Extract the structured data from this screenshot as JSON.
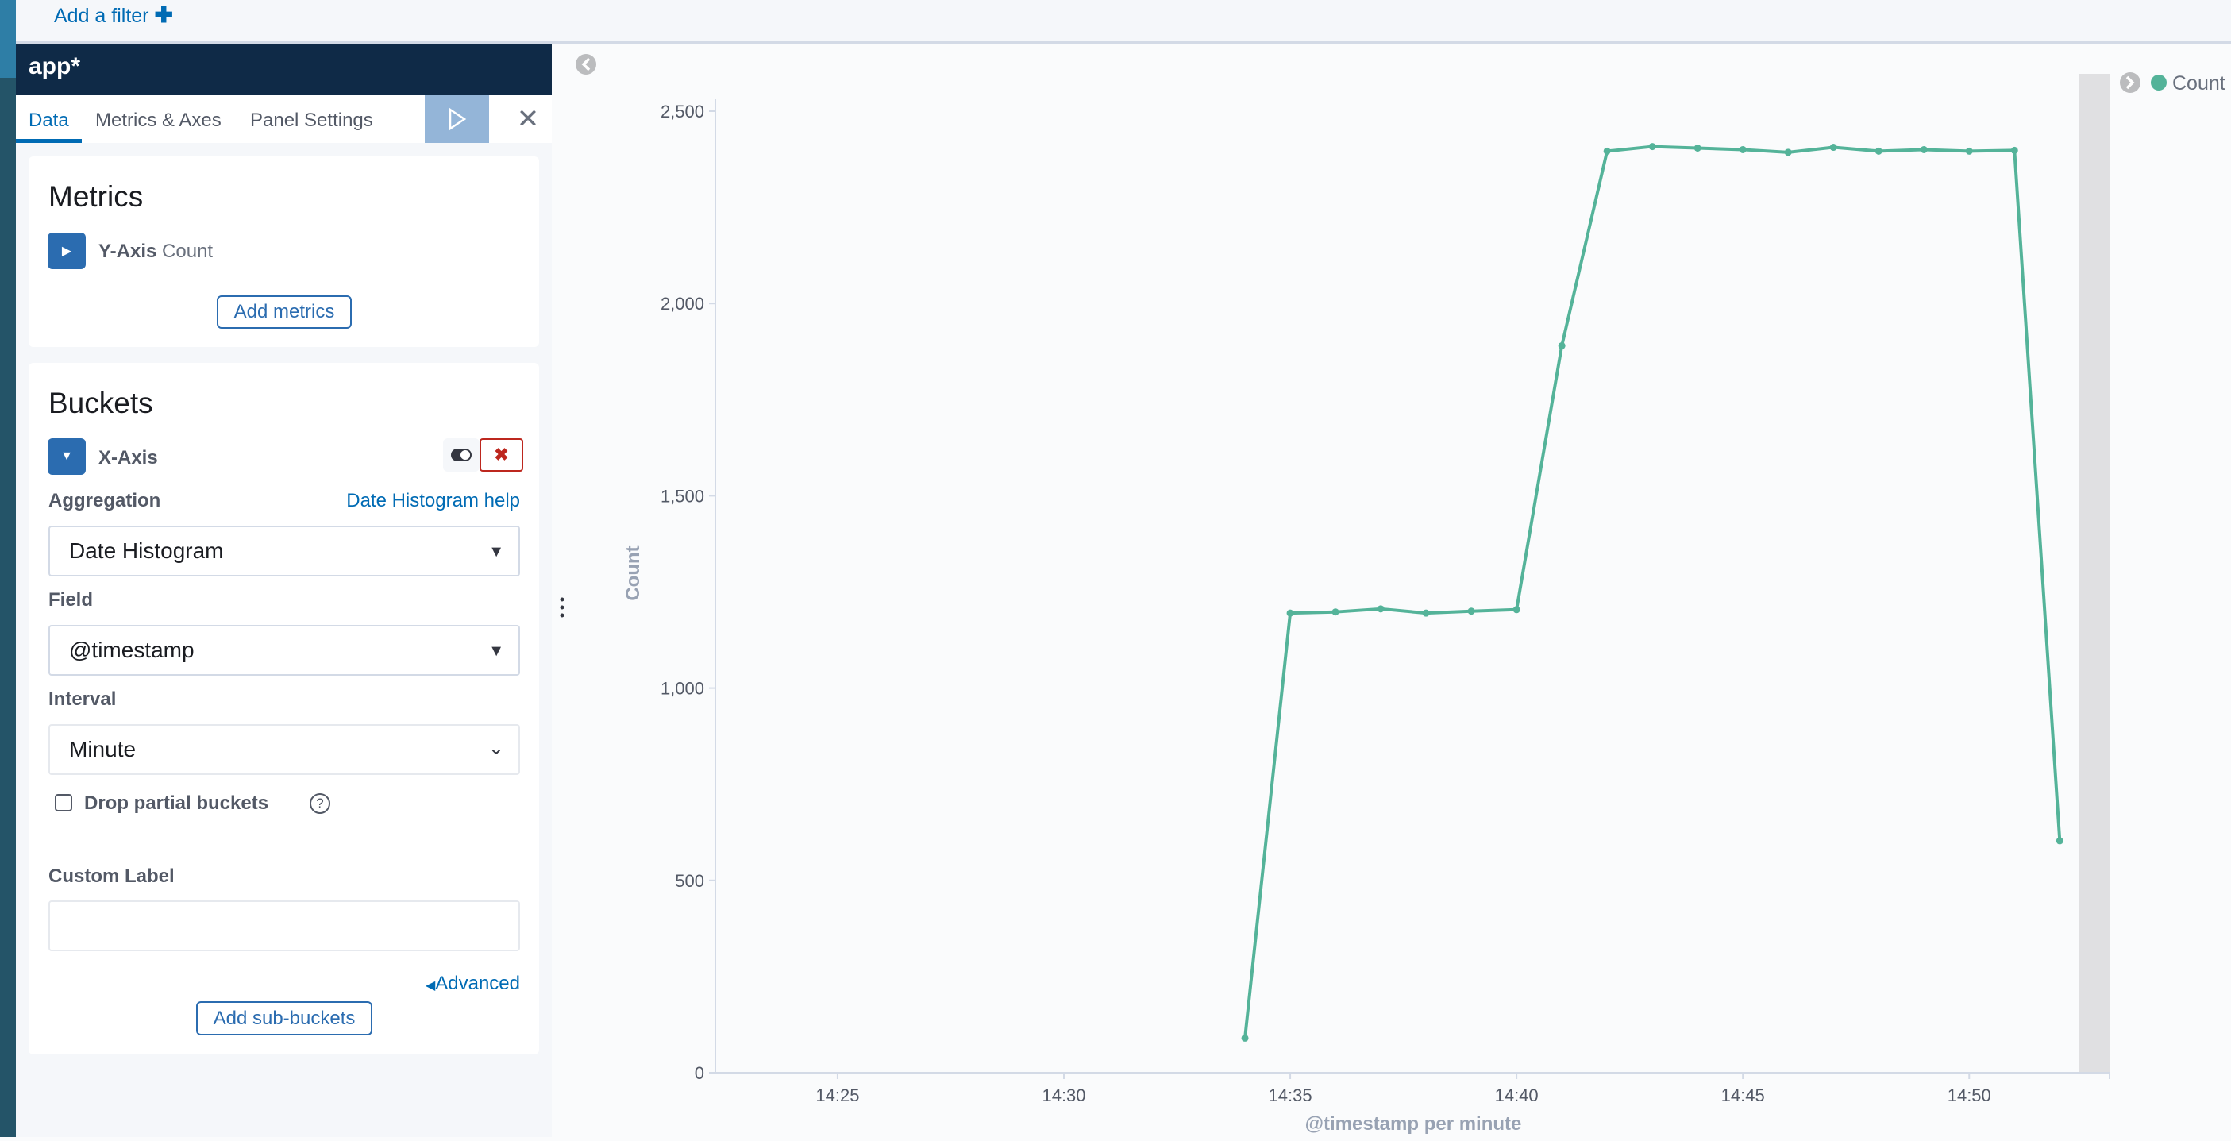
{
  "filter_bar": {
    "add_filter_label": "Add a filter",
    "add_icon": "plus-icon"
  },
  "editor": {
    "index_pattern": "app*",
    "tabs": [
      {
        "label": "Data",
        "active": true
      },
      {
        "label": "Metrics & Axes"
      },
      {
        "label": "Panel Settings"
      }
    ],
    "apply_icon": "play-icon",
    "close_icon": "close-icon",
    "metrics": {
      "title": "Metrics",
      "item_axis": "Y-Axis",
      "item_agg": "Count",
      "add_label": "Add metrics"
    },
    "buckets": {
      "title": "Buckets",
      "item_axis": "X-Axis",
      "aggregation_label": "Aggregation",
      "help_link": "Date Histogram help",
      "aggregation_value": "Date Histogram",
      "field_label": "Field",
      "field_value": "@timestamp",
      "interval_label": "Interval",
      "interval_value": "Minute",
      "drop_partial_label": "Drop partial buckets",
      "drop_partial_checked": false,
      "custom_label_label": "Custom Label",
      "custom_label_value": "",
      "advanced_label": "Advanced",
      "add_sub_label": "Add sub-buckets"
    },
    "colors": {
      "accent": "#006bb4",
      "header": "#0f2a47",
      "delete": "#bd271e"
    }
  },
  "chart_data": {
    "type": "line",
    "xlabel": "@timestamp per minute",
    "ylabel": "Count",
    "x_ticks": [
      "14:25",
      "14:30",
      "14:35",
      "14:40",
      "14:45",
      "14:50"
    ],
    "y_ticks": [
      "0",
      "500",
      "1,000",
      "1,500",
      "2,000",
      "2,500"
    ],
    "xlim": [
      "14:22:18",
      "14:53:06"
    ],
    "ylim": [
      0,
      2600
    ],
    "partial_bucket_from": "14:52:25",
    "grid": false,
    "legend": "top-right",
    "series": [
      {
        "name": "Count",
        "color": "#54b399",
        "x": [
          "14:34",
          "14:35",
          "14:36",
          "14:37",
          "14:38",
          "14:39",
          "14:40",
          "14:41",
          "14:42",
          "14:43",
          "14:44",
          "14:45",
          "14:46",
          "14:47",
          "14:48",
          "14:49",
          "14:50",
          "14:51",
          "14:52"
        ],
        "y": [
          90,
          1195,
          1198,
          1206,
          1195,
          1200,
          1204,
          1890,
          2396,
          2408,
          2404,
          2400,
          2393,
          2406,
          2396,
          2400,
          2396,
          2398,
          603
        ]
      }
    ]
  }
}
